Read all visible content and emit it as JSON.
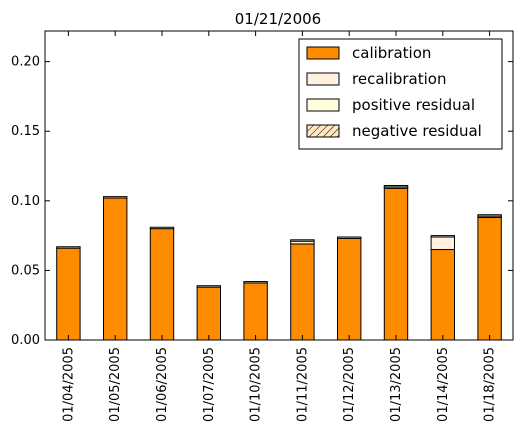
{
  "chart_data": {
    "type": "bar",
    "stacked": true,
    "title": "01/21/2006",
    "xlabel": "",
    "ylabel": "",
    "categories": [
      "01/04/2005",
      "01/05/2005",
      "01/06/2005",
      "01/07/2005",
      "01/10/2005",
      "01/11/2005",
      "01/12/2005",
      "01/13/2005",
      "01/14/2005",
      "01/18/2005"
    ],
    "ylim": [
      0,
      0.222
    ],
    "yticks": [
      0.0,
      0.05,
      0.1,
      0.15,
      0.2
    ],
    "ytick_labels": [
      "0.00",
      "0.05",
      "0.10",
      "0.15",
      "0.20"
    ],
    "grid": false,
    "legend_position": "top-right",
    "series": [
      {
        "name": "calibration",
        "color": "#ff8c00",
        "hatch": false,
        "values": [
          0.066,
          0.102,
          0.08,
          0.038,
          0.041,
          0.069,
          0.073,
          0.109,
          0.065,
          0.088
        ]
      },
      {
        "name": "recalibration",
        "color": "#fff0e0",
        "hatch": false,
        "values": [
          0.0,
          0.0,
          0.0,
          0.0,
          0.0,
          0.002,
          0.0,
          0.001,
          0.009,
          0.001
        ]
      },
      {
        "name": "positive residual",
        "color": "#ffffdd",
        "hatch": false,
        "values": [
          0.001,
          0.001,
          0.001,
          0.001,
          0.001,
          0.001,
          0.001,
          0.001,
          0.001,
          0.001
        ]
      },
      {
        "name": "negative residual",
        "color": "#ffe8c0",
        "hatch": true,
        "values": [
          0.0,
          0.0,
          0.0,
          0.0,
          0.0,
          0.0,
          0.0,
          0.0,
          0.0,
          0.0
        ]
      }
    ]
  }
}
